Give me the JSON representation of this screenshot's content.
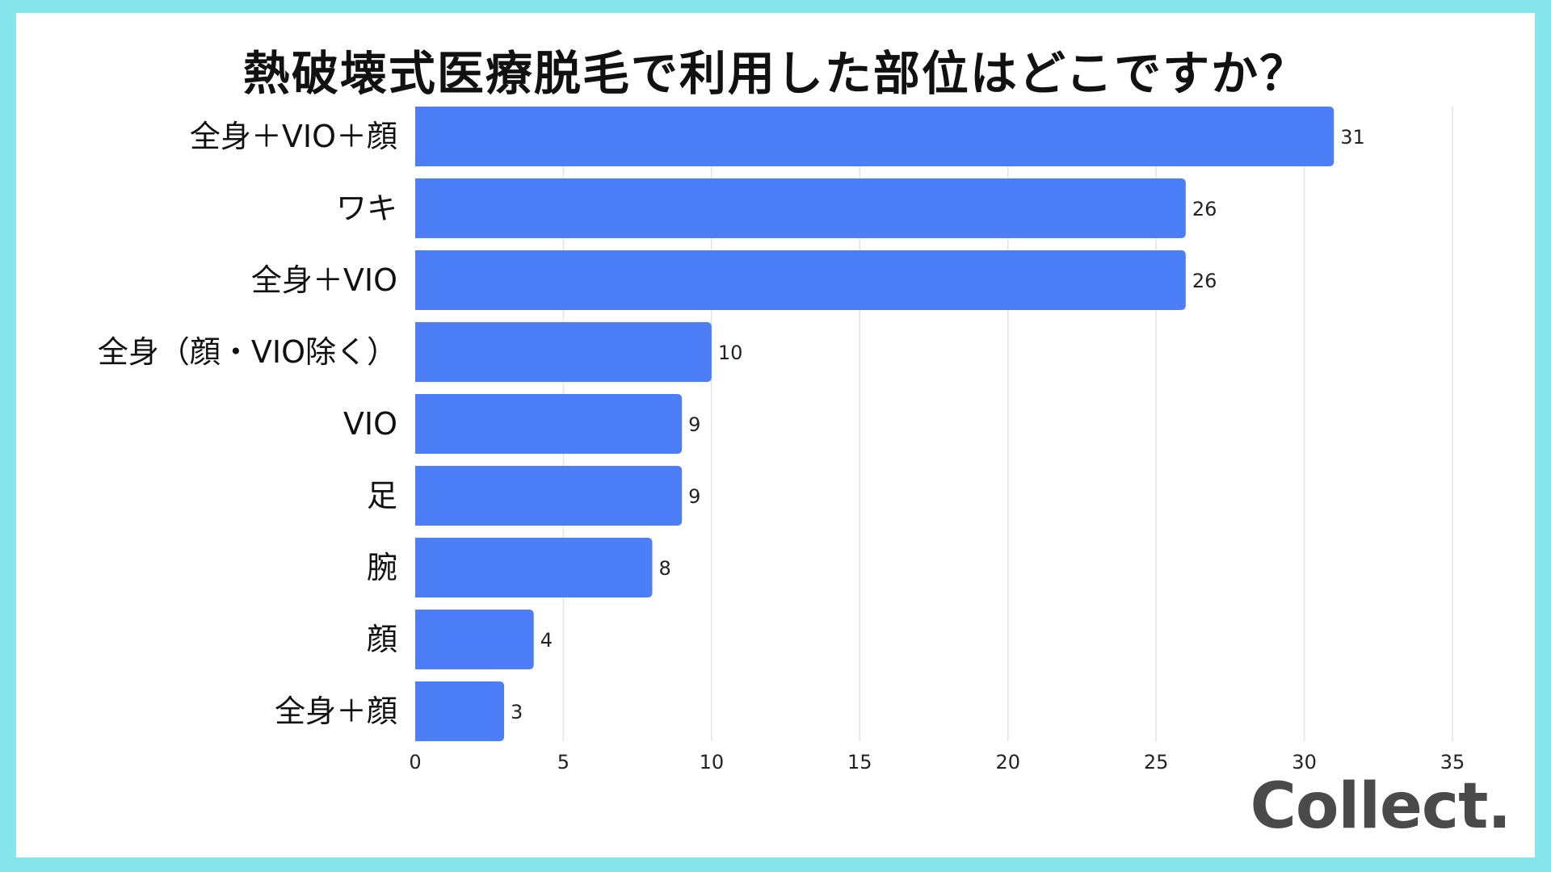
{
  "chart_data": {
    "type": "bar",
    "orientation": "horizontal",
    "title": "熱破壊式医療脱毛で利用した部位はどこですか？",
    "categories": [
      "全身＋VIO＋顔",
      "ワキ",
      "全身＋VIO",
      "全身（顔・VIO除く）",
      "VIO",
      "足",
      "腕",
      "顔",
      "全身＋顔"
    ],
    "values": [
      31,
      26,
      26,
      10,
      9,
      9,
      8,
      4,
      3
    ],
    "xlim": [
      0,
      35
    ],
    "xticks": [
      0,
      5,
      10,
      15,
      20,
      25,
      30,
      35
    ],
    "grid": true,
    "bar_color": "#4C7FF7"
  },
  "branding": {
    "logo_text": "Collect."
  },
  "colors": {
    "background_border": "#86E6EC",
    "grid": "#E4E4E4"
  }
}
